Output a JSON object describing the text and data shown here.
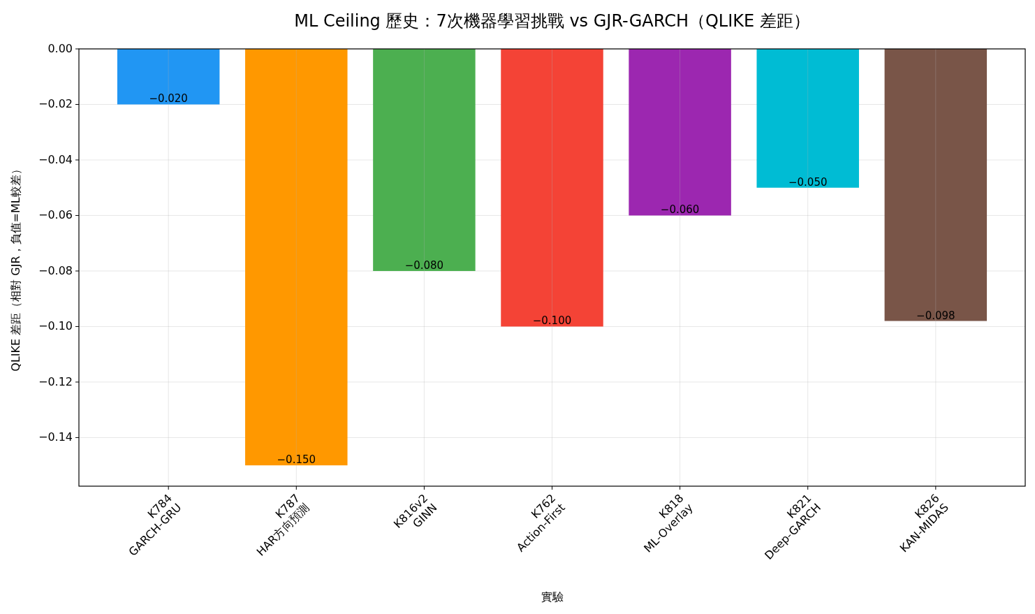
{
  "chart_data": {
    "type": "bar",
    "title": "ML Ceiling 歷史：7次機器學習挑戰 vs GJR-GARCH（QLIKE 差距）",
    "xlabel": "實驗",
    "ylabel": "QLIKE 差距（相對 GJR，負值=ML較差）",
    "categories": [
      "K784\nGARCH-GRU",
      "K787\nHAR方向預測",
      "K816v2\nGINN",
      "K762\nAction-First",
      "K818\nML-Overlay",
      "K821\nDeep-GARCH",
      "K826\nKAN-MIDAS"
    ],
    "values": [
      -0.02,
      -0.15,
      -0.08,
      -0.1,
      -0.06,
      -0.05,
      -0.098
    ],
    "colors": [
      "#2196f3",
      "#ff9800",
      "#4caf50",
      "#f44336",
      "#9c27b0",
      "#00bcd4",
      "#795548"
    ],
    "value_labels": [
      "−0.020",
      "−0.150",
      "−0.080",
      "−0.100",
      "−0.060",
      "−0.050",
      "−0.098"
    ],
    "ylim": [
      -0.1575,
      0
    ],
    "yticks": [
      {
        "value": 0,
        "label": "0.00"
      },
      {
        "value": -0.02,
        "label": "−0.02"
      },
      {
        "value": -0.04,
        "label": "−0.04"
      },
      {
        "value": -0.06,
        "label": "−0.06"
      },
      {
        "value": -0.08,
        "label": "−0.08"
      },
      {
        "value": -0.1,
        "label": "−0.10"
      },
      {
        "value": -0.12,
        "label": "−0.12"
      },
      {
        "value": -0.14,
        "label": "−0.14"
      }
    ],
    "grid": true
  }
}
